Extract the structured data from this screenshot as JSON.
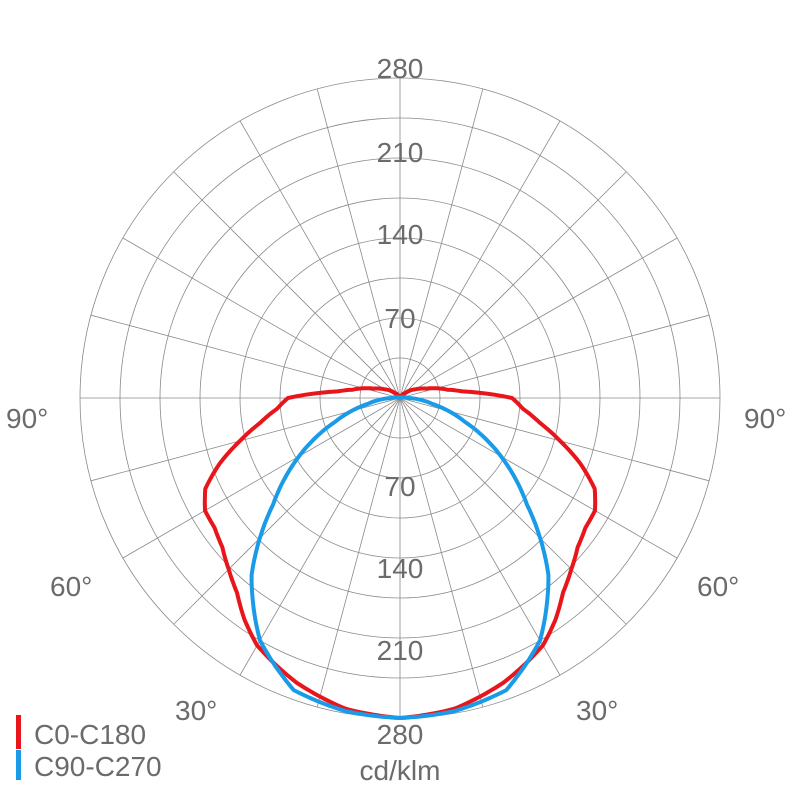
{
  "chart_data": {
    "type": "polar-line",
    "unit_label": "cd/klm",
    "radial_range": [
      0,
      280
    ],
    "radial_step": 35,
    "radial_tick_labels": [
      "70",
      "140",
      "210",
      "280"
    ],
    "angle_step_deg": 15,
    "angle_tick_labels": [
      "30°",
      "60°",
      "90°"
    ],
    "grid": true,
    "legend_position": "bottom-left",
    "series": [
      {
        "name": "C0-C180",
        "color": "#e8161b",
        "angles": [
          0,
          10,
          20,
          30,
          35,
          40,
          45,
          50,
          55,
          60,
          65,
          70,
          75,
          80,
          85,
          90,
          93,
          96,
          100,
          110,
          120,
          135,
          150,
          180
        ],
        "values": [
          280,
          276,
          265,
          250,
          237,
          222,
          212,
          203,
          198,
          197,
          188,
          168,
          145,
          124,
          108,
          98,
          75,
          55,
          42,
          24,
          15,
          6,
          2,
          0
        ]
      },
      {
        "name": "C90-C270",
        "color": "#1a9be8",
        "angles": [
          0,
          10,
          20,
          30,
          40,
          50,
          60,
          70,
          80,
          90,
          100,
          120,
          180
        ],
        "values": [
          280,
          278,
          272,
          245,
          202,
          145,
          102,
          60,
          28,
          8,
          3,
          1,
          0
        ]
      }
    ]
  }
}
